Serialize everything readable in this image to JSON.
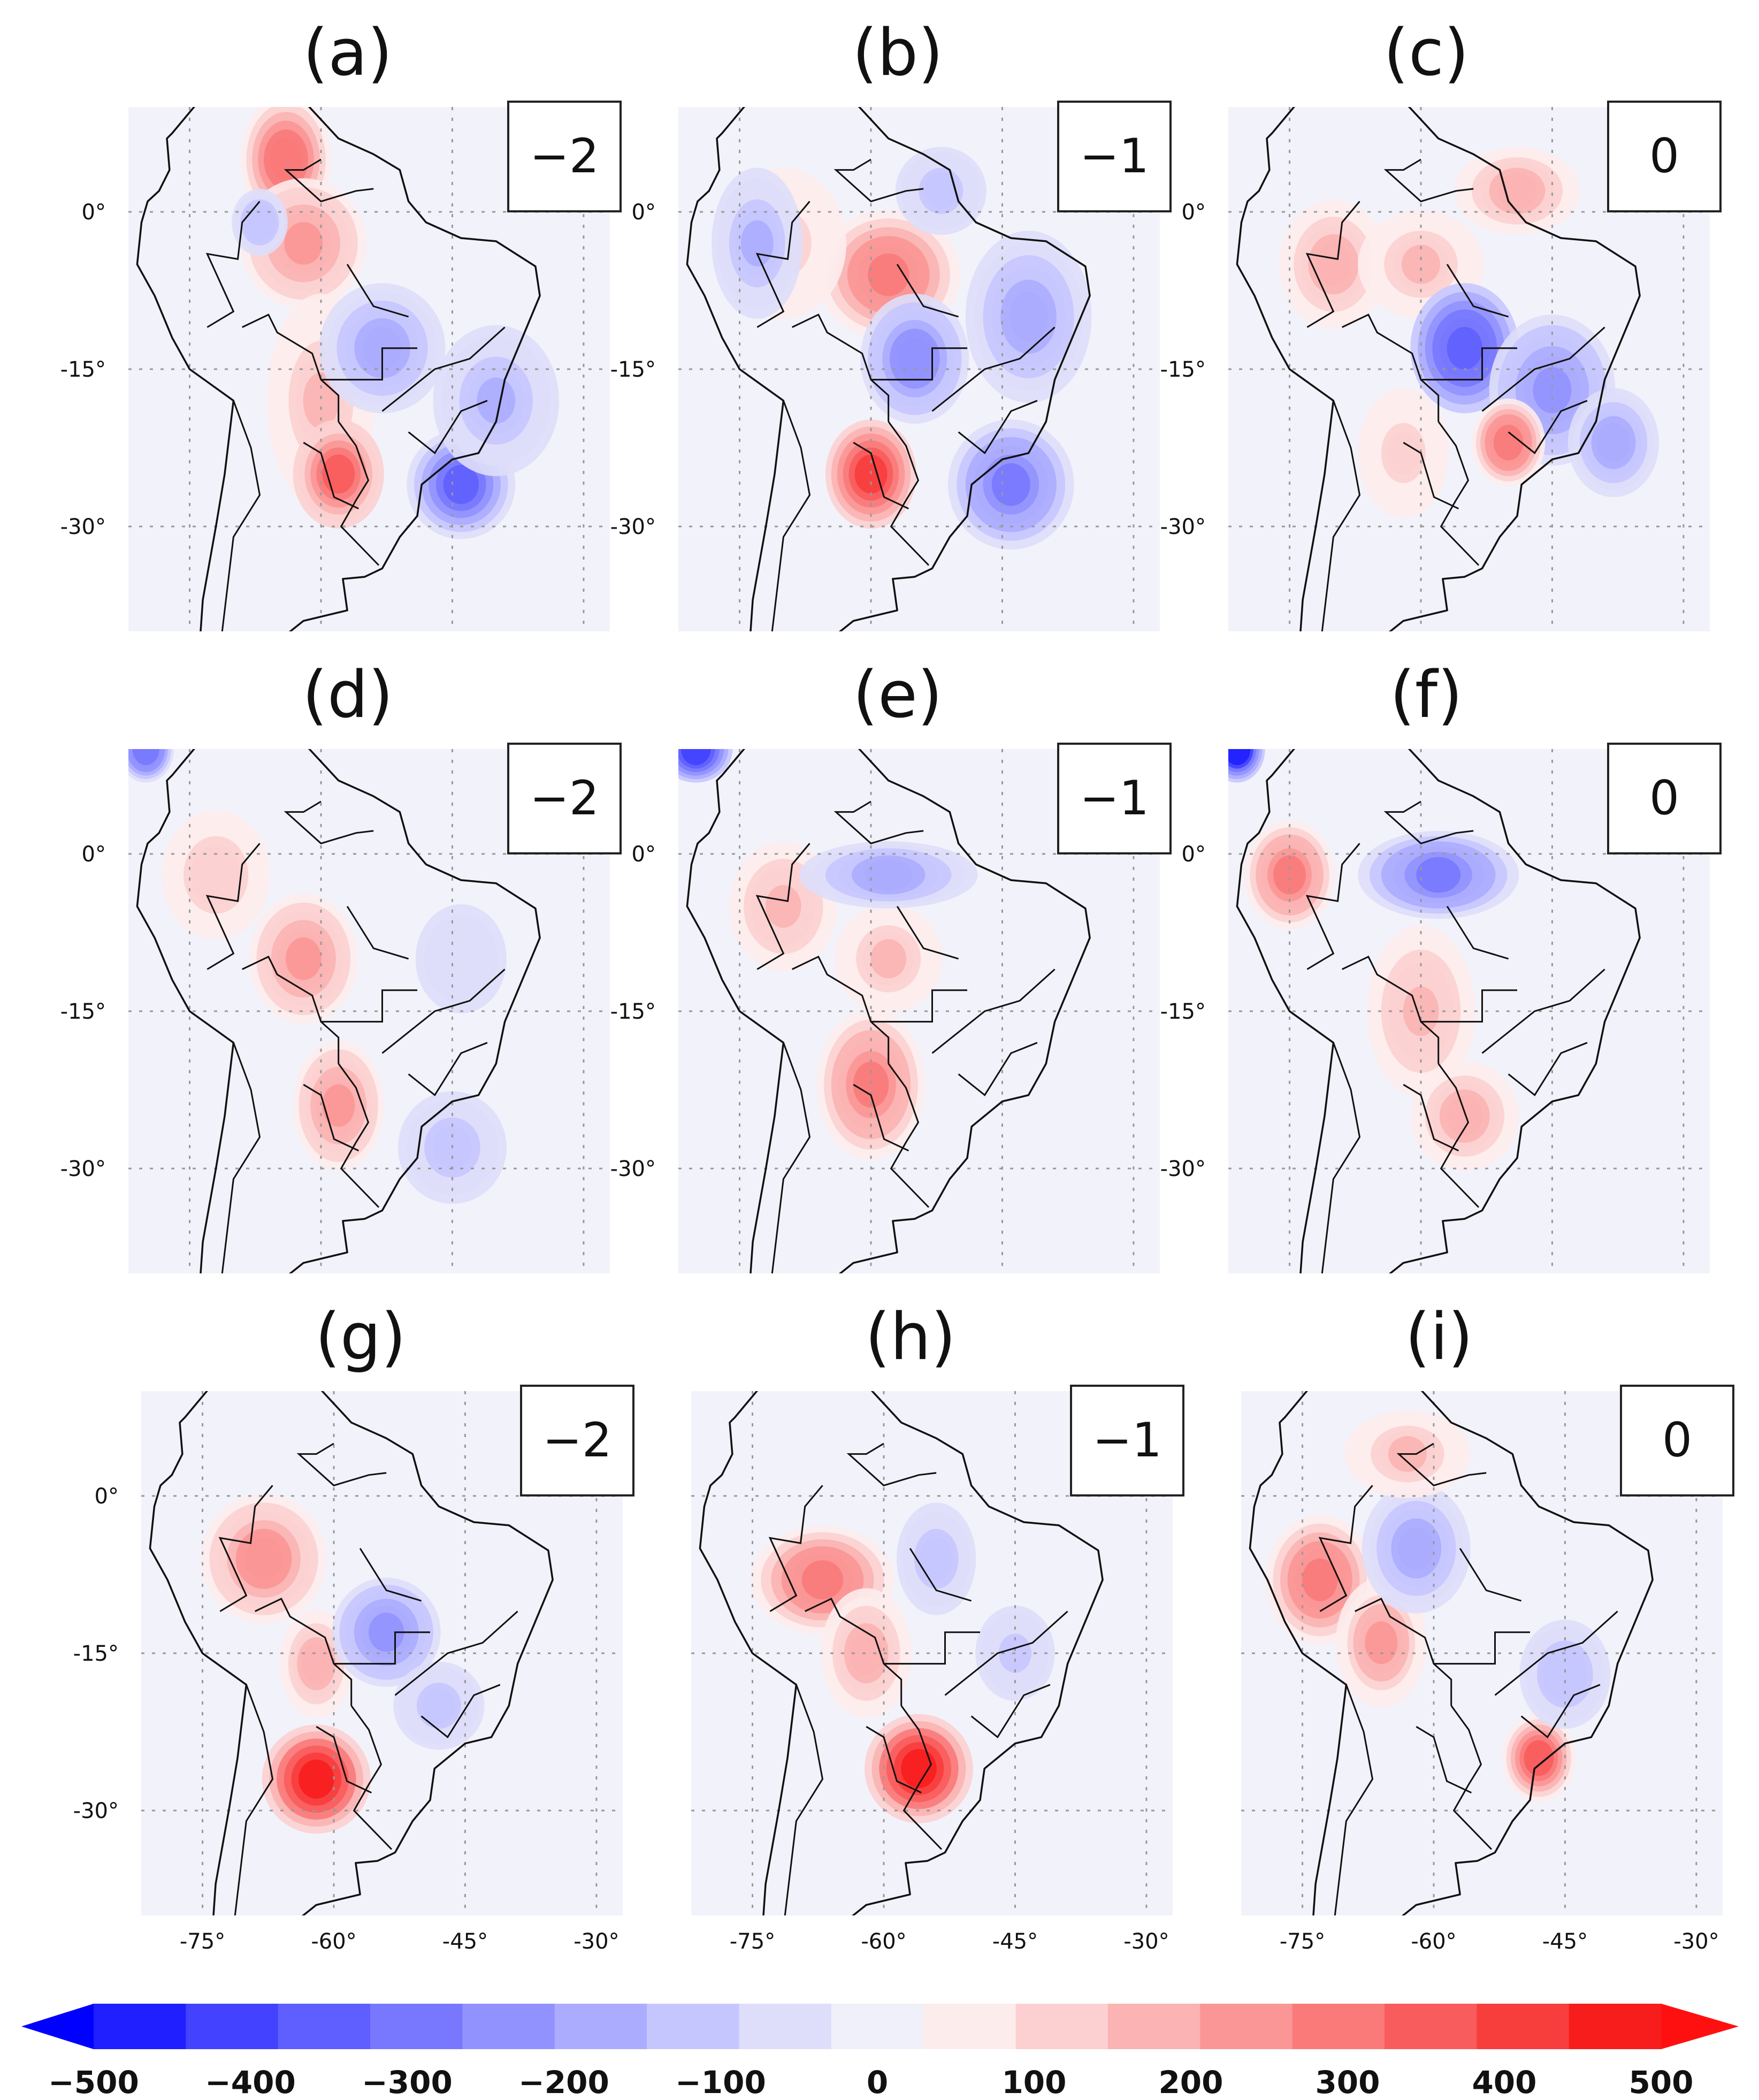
{
  "chart_data": {
    "type": "heatmap",
    "description_grid": "3x3 small multiples of anomaly maps over South America",
    "panels": [
      {
        "title": "(a)",
        "lag": "−2",
        "xticks": [],
        "yticks": [
          "0°",
          "-15°",
          "-30°"
        ]
      },
      {
        "title": "(b)",
        "lag": "−1",
        "xticks": [],
        "yticks": [
          "0°",
          "-15°",
          "-30°"
        ]
      },
      {
        "title": "(c)",
        "lag": "0",
        "xticks": [],
        "yticks": [
          "0°",
          "-15°",
          "-30°"
        ]
      },
      {
        "title": "(d)",
        "lag": "−2",
        "xticks": [],
        "yticks": [
          "0°",
          "-15°",
          "-30°"
        ]
      },
      {
        "title": "(e)",
        "lag": "−1",
        "xticks": [],
        "yticks": [
          "0°",
          "-15°",
          "-30°"
        ]
      },
      {
        "title": "(f)",
        "lag": "0",
        "xticks": [],
        "yticks": [
          "0°",
          "-15°",
          "-30°"
        ]
      },
      {
        "title": "(g)",
        "lag": "−2",
        "xticks": [
          "-75°",
          "-60°",
          "-45°",
          "-30°"
        ],
        "yticks": [
          "0°",
          "-15°",
          "-30°"
        ]
      },
      {
        "title": "(h)",
        "lag": "−1",
        "xticks": [
          "-75°",
          "-60°",
          "-45°",
          "-30°"
        ],
        "yticks": []
      },
      {
        "title": "(i)",
        "lag": "0",
        "xticks": [
          "-75°",
          "-60°",
          "-45°",
          "-30°"
        ],
        "yticks": []
      }
    ],
    "lon_range": [
      -82,
      -27
    ],
    "lat_range": [
      10,
      -40
    ],
    "anomalies": [
      [
        [
          -64,
          5,
          320,
          4,
          5
        ],
        [
          -62,
          -3,
          240,
          6,
          5
        ],
        [
          -60,
          -18,
          160,
          5,
          9
        ],
        [
          -58,
          -25,
          360,
          4,
          4
        ],
        [
          -53,
          -13,
          -200,
          6,
          5
        ],
        [
          -44,
          -26,
          -340,
          5,
          4
        ],
        [
          -40,
          -18,
          -150,
          6,
          6
        ],
        [
          -67,
          -1,
          -140,
          2,
          2
        ]
      ],
      [
        [
          -58,
          -6,
          300,
          7,
          5
        ],
        [
          -70,
          -3,
          120,
          6,
          6
        ],
        [
          -60,
          -25,
          420,
          4,
          4
        ],
        [
          -55,
          -14,
          -260,
          5,
          5
        ],
        [
          -44,
          -26,
          -280,
          6,
          5
        ],
        [
          -42,
          -10,
          -200,
          6,
          7
        ],
        [
          -73,
          -3,
          -160,
          4,
          6
        ],
        [
          -52,
          2,
          -120,
          4,
          3
        ]
      ],
      [
        [
          -70,
          -5,
          200,
          5,
          5
        ],
        [
          -60,
          -5,
          150,
          6,
          4
        ],
        [
          -49,
          2,
          180,
          6,
          3
        ],
        [
          -55,
          -13,
          -380,
          5,
          5
        ],
        [
          -45,
          -17,
          -230,
          6,
          6
        ],
        [
          -38,
          -22,
          -200,
          4,
          4
        ],
        [
          -50,
          -22,
          300,
          3,
          3
        ],
        [
          -62,
          -23,
          120,
          4,
          5
        ]
      ],
      [
        [
          -62,
          -10,
          230,
          5,
          5
        ],
        [
          -58,
          -24,
          240,
          4,
          5
        ],
        [
          -72,
          -2,
          140,
          5,
          5
        ],
        [
          -45,
          -28,
          -110,
          6,
          5
        ],
        [
          -44,
          -10,
          -60,
          6,
          6
        ],
        [
          -80,
          10,
          -300,
          2,
          2
        ]
      ],
      [
        [
          -60,
          -22,
          280,
          5,
          6
        ],
        [
          -70,
          -5,
          170,
          5,
          5
        ],
        [
          -58,
          -10,
          160,
          5,
          4
        ],
        [
          -58,
          -2,
          -180,
          9,
          2
        ],
        [
          -80,
          10,
          -420,
          3,
          2
        ]
      ],
      [
        [
          -75,
          -2,
          270,
          4,
          4
        ],
        [
          -60,
          -15,
          170,
          5,
          7
        ],
        [
          -55,
          -25,
          200,
          5,
          4
        ],
        [
          -58,
          -2,
          -290,
          8,
          3
        ],
        [
          -81,
          10,
          -450,
          2,
          2
        ]
      ],
      [
        [
          -62,
          -27,
          500,
          5,
          4
        ],
        [
          -68,
          -6,
          260,
          6,
          5
        ],
        [
          -62,
          -16,
          200,
          3,
          4
        ],
        [
          -54,
          -13,
          -230,
          5,
          4
        ],
        [
          -48,
          -20,
          -120,
          4,
          3
        ]
      ],
      [
        [
          -56,
          -26,
          500,
          5,
          4
        ],
        [
          -67,
          -8,
          300,
          7,
          4
        ],
        [
          -62,
          -15,
          180,
          4,
          5
        ],
        [
          -54,
          -6,
          -110,
          4,
          5
        ],
        [
          -45,
          -15,
          -90,
          4,
          4
        ]
      ],
      [
        [
          -73,
          -8,
          300,
          5,
          5
        ],
        [
          -66,
          -14,
          220,
          4,
          5
        ],
        [
          -48,
          -25,
          330,
          3,
          3
        ],
        [
          -62,
          -5,
          -200,
          5,
          5
        ],
        [
          -45,
          -17,
          -130,
          4,
          4
        ],
        [
          -63,
          4,
          160,
          6,
          3
        ]
      ]
    ],
    "colorbar": {
      "ticks": [
        "−500",
        "−400",
        "−300",
        "−200",
        "−100",
        "0",
        "100",
        "200",
        "300",
        "400",
        "500"
      ],
      "range": [
        -500,
        500
      ],
      "colors": [
        "#1f1fff",
        "#4343ff",
        "#5f5fff",
        "#7878ff",
        "#9292ff",
        "#acacff",
        "#c6c6ff",
        "#dedefa",
        "#f0f0fa",
        "#fdecec",
        "#fcd0d0",
        "#fbb3b3",
        "#fb9696",
        "#fa7a7a",
        "#f95c5c",
        "#f83d3d",
        "#f71d1d"
      ],
      "arrow_left": "#0000ff",
      "arrow_right": "#ff1010"
    }
  }
}
